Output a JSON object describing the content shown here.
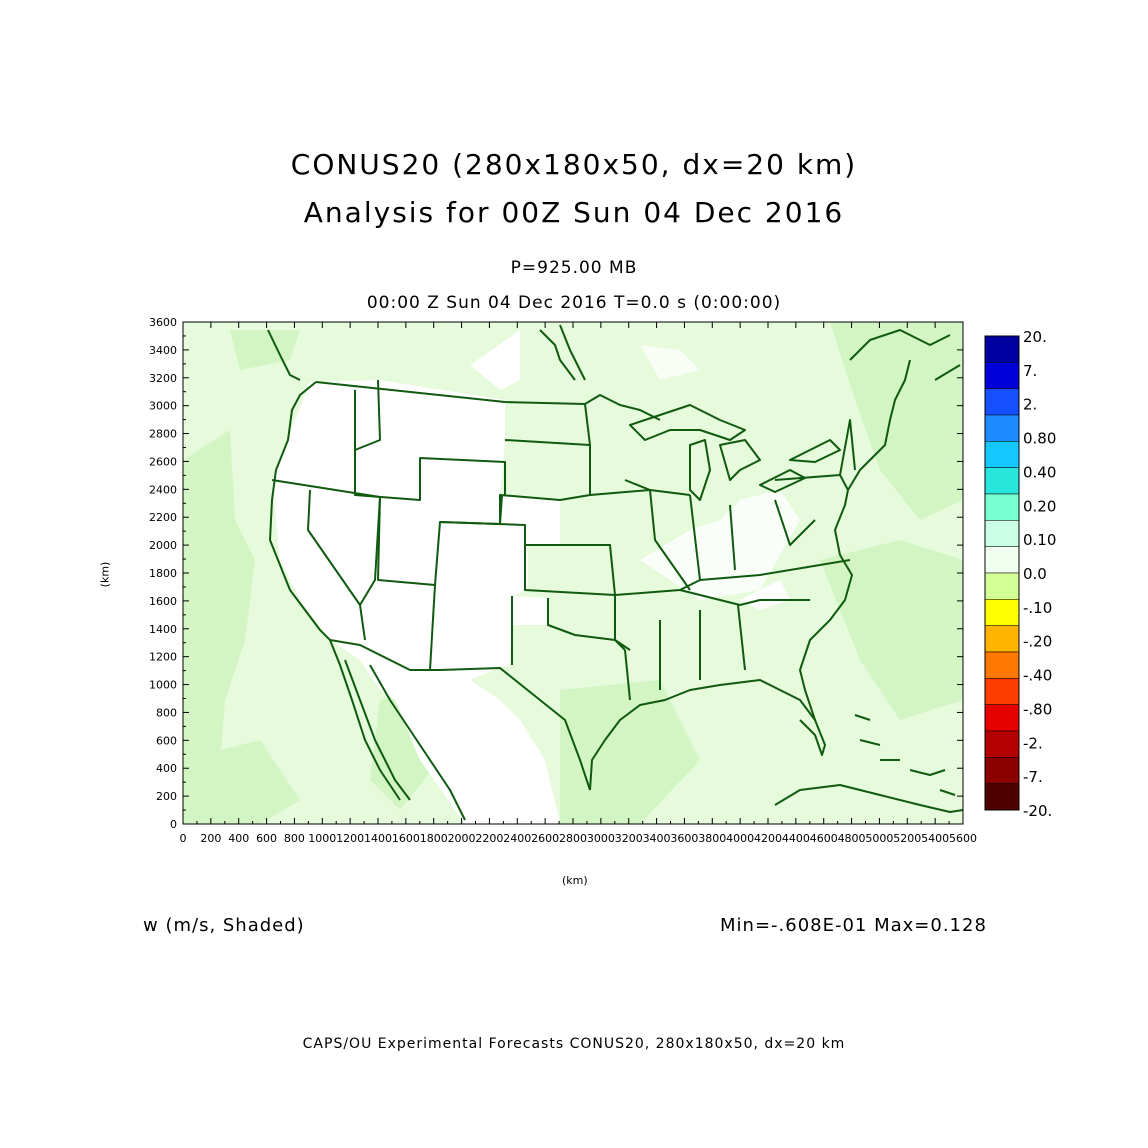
{
  "header": {
    "title_line1": "CONUS20 (280x180x50, dx=20 km)",
    "title_line2": "Analysis for 00Z Sun 04 Dec 2016",
    "level": "P=925.00 MB",
    "time": "00:00 Z Sun 04 Dec 2016    T=0.0 s (0:00:00)"
  },
  "axes": {
    "x_label": "(km)",
    "y_label": "(km)",
    "x_ticks": [
      "0",
      "200",
      "400",
      "600",
      "800",
      "1000",
      "1200",
      "1400",
      "1600",
      "1800",
      "2000",
      "2200",
      "2400",
      "2600",
      "2800",
      "3000",
      "3200",
      "3400",
      "3600",
      "3800",
      "4000",
      "4200",
      "4400",
      "4600",
      "4800",
      "5000",
      "5200",
      "5400",
      "5600"
    ],
    "y_ticks": [
      "0",
      "200",
      "400",
      "600",
      "800",
      "1000",
      "1200",
      "1400",
      "1600",
      "1800",
      "2000",
      "2200",
      "2400",
      "2600",
      "2800",
      "3000",
      "3200",
      "3400",
      "3600"
    ],
    "x_range": [
      0,
      5600
    ],
    "y_range": [
      0,
      3600
    ]
  },
  "colorbar": {
    "labels": [
      "20.",
      "7.",
      "2.",
      "0.80",
      "0.40",
      "0.20",
      "0.10",
      "0.0",
      "-.10",
      "-.20",
      "-.40",
      "-.80",
      "-2.",
      "-7.",
      "-20."
    ],
    "colors": [
      "#0000a0",
      "#0000d8",
      "#1450ff",
      "#1e8cff",
      "#14c8ff",
      "#28e6dc",
      "#78ffd2",
      "#c8ffe6",
      "#f0fff0",
      "#d2ff96",
      "#ffff00",
      "#ffb400",
      "#ff7800",
      "#ff3c00",
      "#e60000",
      "#b40000",
      "#8c0000",
      "#500000"
    ]
  },
  "field": {
    "variable_label": "w (m/s, Shaded)",
    "min_max": "Min=-.608E-01 Max=0.128",
    "shading_colors": {
      "near_zero": "#ffffff",
      "weak_negative": "#e6fadc",
      "moderate_negative": "#d2f5c3"
    },
    "boundary_color": "#0f5a0f"
  },
  "footer": "CAPS/OU Experimental Forecasts  CONUS20, 280x180x50, dx=20 km"
}
